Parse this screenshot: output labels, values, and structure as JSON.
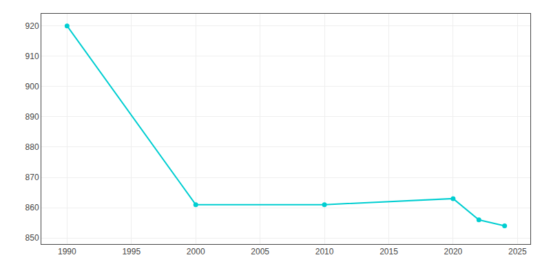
{
  "chart_data": {
    "type": "line",
    "x": [
      1990,
      2000,
      2010,
      2020,
      2022,
      2024
    ],
    "values": [
      920,
      861,
      861,
      863,
      856,
      854
    ],
    "color": "#00CED1",
    "marker": "circle",
    "xlim": [
      1988,
      2026
    ],
    "ylim": [
      848,
      924
    ],
    "xticks": [
      1990,
      1995,
      2000,
      2005,
      2010,
      2015,
      2020,
      2025
    ],
    "yticks": [
      850,
      860,
      870,
      880,
      890,
      900,
      910,
      920
    ],
    "grid": true
  }
}
